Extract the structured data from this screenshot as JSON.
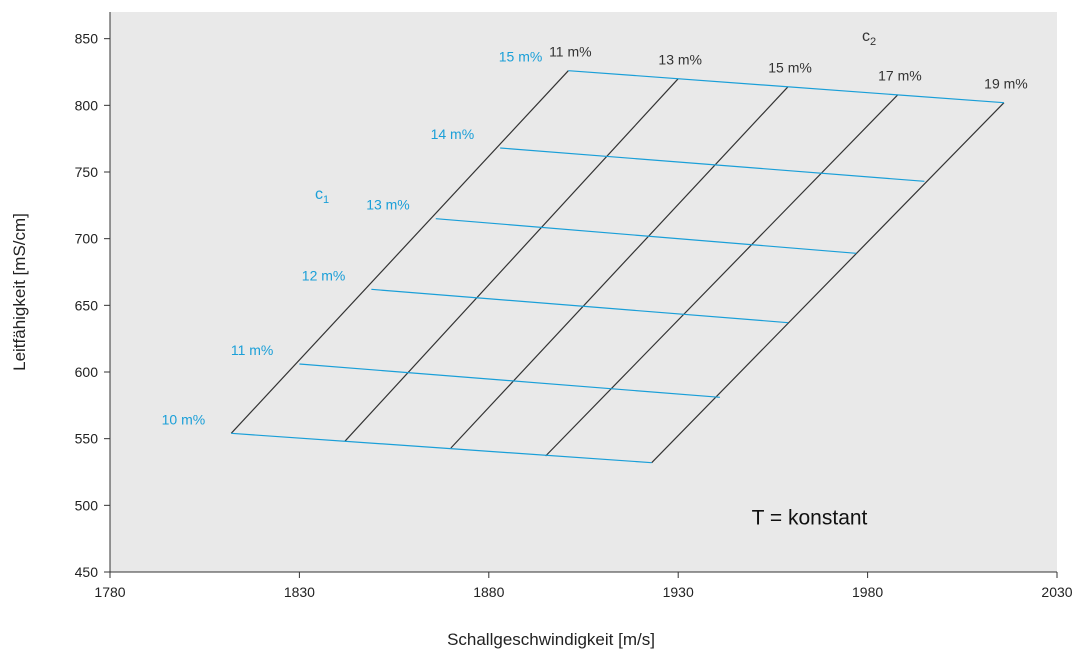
{
  "chart_data": {
    "type": "line",
    "title": "",
    "xlabel": "Schallgeschwindigkeit  [m/s]",
    "ylabel": "Leitfähigkeit  [mS/cm]",
    "xlim": [
      1780,
      2030
    ],
    "ylim": [
      450,
      870
    ],
    "x_ticks": [
      1780,
      1830,
      1880,
      1930,
      1980,
      2030
    ],
    "y_ticks": [
      450,
      500,
      550,
      600,
      650,
      700,
      750,
      800,
      850
    ],
    "grid": false,
    "background_color": "#e9e9e9",
    "colors": {
      "c1": "#1a9fd8",
      "c2": "#333333",
      "axis": "#333333"
    },
    "c1_series_name": "c",
    "c1_series_sub": "1",
    "c2_series_name": "c",
    "c2_series_sub": "2",
    "c1_lines": [
      {
        "label": "10 m%",
        "points": [
          [
            1812,
            554
          ],
          [
            1923,
            532
          ]
        ]
      },
      {
        "label": "11 m%",
        "points": [
          [
            1830,
            606
          ],
          [
            1941,
            581
          ]
        ]
      },
      {
        "label": "12 m%",
        "points": [
          [
            1849,
            662
          ],
          [
            1959,
            637
          ]
        ]
      },
      {
        "label": "13 m%",
        "points": [
          [
            1866,
            715
          ],
          [
            1977,
            689
          ]
        ]
      },
      {
        "label": "14 m%",
        "points": [
          [
            1883,
            768
          ],
          [
            1995,
            743
          ]
        ]
      },
      {
        "label": "15 m%",
        "points": [
          [
            1901,
            826
          ],
          [
            2016,
            802
          ]
        ]
      }
    ],
    "c2_lines": [
      {
        "label": "11 m%",
        "points": [
          [
            1812,
            554
          ],
          [
            1901,
            826
          ]
        ]
      },
      {
        "label": "13 m%",
        "points": [
          [
            1842,
            548
          ],
          [
            1930,
            820
          ]
        ]
      },
      {
        "label": "15 m%",
        "points": [
          [
            1870,
            543
          ],
          [
            1959,
            814
          ]
        ]
      },
      {
        "label": "17 m%",
        "points": [
          [
            1895,
            537
          ],
          [
            1988,
            808
          ]
        ]
      },
      {
        "label": "19 m%",
        "points": [
          [
            1923,
            532
          ],
          [
            2016,
            802
          ]
        ]
      }
    ],
    "annotations": [
      {
        "text": "T = konstant",
        "x": 1995,
        "y": 505
      }
    ]
  }
}
